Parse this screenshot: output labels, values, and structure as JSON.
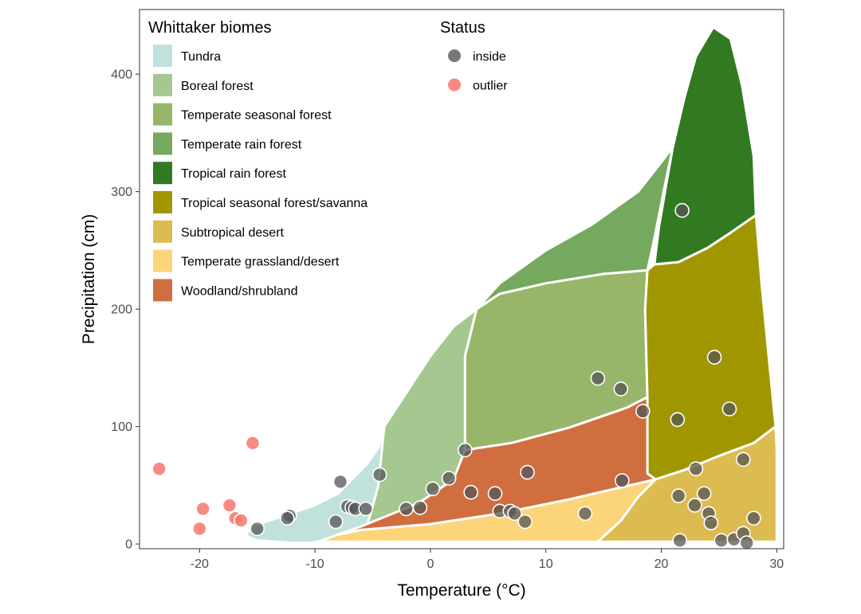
{
  "chart_data": {
    "type": "scatter",
    "xlabel": "Temperature (°C)",
    "ylabel": "Precipitation (cm)",
    "xlim": [
      -25.2,
      30.6
    ],
    "ylim": [
      -4,
      455
    ],
    "x_ticks": [
      -20,
      -10,
      0,
      10,
      20,
      30
    ],
    "x_tick_labels": [
      "-20",
      "-10",
      "0",
      "10",
      "20",
      "30"
    ],
    "y_ticks": [
      0,
      100,
      200,
      300,
      400
    ],
    "y_tick_labels": [
      "0",
      "100",
      "200",
      "300",
      "400"
    ],
    "grid": false,
    "legend_position": "top-left inside",
    "biome_legend": {
      "title": "Whittaker biomes",
      "items": [
        {
          "label": "Tundra",
          "color": "#C1E1DD"
        },
        {
          "label": "Boreal forest",
          "color": "#A5C790"
        },
        {
          "label": "Temperate seasonal forest",
          "color": "#97B669"
        },
        {
          "label": "Temperate rain forest",
          "color": "#75A95E"
        },
        {
          "label": "Tropical rain forest",
          "color": "#317A22"
        },
        {
          "label": "Tropical seasonal forest/savanna",
          "color": "#A09700"
        },
        {
          "label": "Subtropical desert",
          "color": "#DCBB50"
        },
        {
          "label": "Temperate grassland/desert",
          "color": "#FCD57A"
        },
        {
          "label": "Woodland/shrubland",
          "color": "#D16E3F"
        }
      ]
    },
    "status_legend": {
      "title": "Status",
      "items": [
        {
          "label": "inside",
          "color": "#555555"
        },
        {
          "label": "outlier",
          "color": "#F8766D"
        }
      ]
    },
    "biome_regions": [
      {
        "name": "Tundra",
        "color": "#C1E1DD",
        "polygon": [
          [
            -15.5,
            15
          ],
          [
            -13,
            23
          ],
          [
            -10,
            33
          ],
          [
            -8,
            43
          ],
          [
            -6.5,
            58
          ],
          [
            -5.5,
            68
          ],
          [
            -4.5,
            82
          ],
          [
            -4,
            100
          ],
          [
            -4.5,
            50
          ],
          [
            -5.5,
            15
          ],
          [
            -8,
            8
          ],
          [
            -10,
            1
          ],
          [
            -12,
            1
          ],
          [
            -15,
            3
          ],
          [
            -16,
            7
          ]
        ]
      },
      {
        "name": "Boreal forest",
        "color": "#A5C790",
        "polygon": [
          [
            -5.5,
            15
          ],
          [
            -4.5,
            50
          ],
          [
            -4,
            100
          ],
          [
            -2,
            130
          ],
          [
            0,
            160
          ],
          [
            2,
            185
          ],
          [
            4,
            200
          ],
          [
            3.5,
            180
          ],
          [
            3,
            160
          ],
          [
            3,
            120
          ],
          [
            3,
            80
          ],
          [
            2,
            55
          ],
          [
            -1,
            35
          ],
          [
            -5.5,
            15
          ]
        ]
      },
      {
        "name": "Temperate seasonal forest",
        "color": "#97B669",
        "polygon": [
          [
            3,
            80
          ],
          [
            3,
            120
          ],
          [
            3,
            160
          ],
          [
            3.5,
            180
          ],
          [
            4,
            200
          ],
          [
            6,
            213
          ],
          [
            10,
            222
          ],
          [
            15,
            230
          ],
          [
            18.8,
            233
          ],
          [
            18.6,
            200
          ],
          [
            18.7,
            160
          ],
          [
            18.8,
            125
          ],
          [
            17,
            116
          ],
          [
            12,
            99
          ],
          [
            7,
            86
          ],
          [
            3,
            80
          ]
        ]
      },
      {
        "name": "Temperate rain forest",
        "color": "#75A95E",
        "polygon": [
          [
            4,
            200
          ],
          [
            6,
            222
          ],
          [
            10,
            250
          ],
          [
            14,
            272
          ],
          [
            18,
            300
          ],
          [
            20,
            325
          ],
          [
            21,
            338
          ],
          [
            20.2,
            300
          ],
          [
            19.4,
            260
          ],
          [
            18.8,
            233
          ],
          [
            15,
            230
          ],
          [
            10,
            222
          ],
          [
            6,
            213
          ]
        ]
      },
      {
        "name": "Tropical rain forest",
        "color": "#317A22",
        "polygon": [
          [
            21,
            338
          ],
          [
            22,
            380
          ],
          [
            23,
            415
          ],
          [
            24.5,
            440
          ],
          [
            26,
            430
          ],
          [
            27,
            390
          ],
          [
            28,
            330
          ],
          [
            28.2,
            280
          ],
          [
            26,
            265
          ],
          [
            24,
            252
          ],
          [
            21.5,
            240
          ],
          [
            19.4,
            238
          ],
          [
            19.8,
            270
          ],
          [
            20.5,
            310
          ]
        ]
      },
      {
        "name": "Tropical seasonal forest/savanna",
        "color": "#A09700",
        "polygon": [
          [
            19.4,
            238
          ],
          [
            21.5,
            240
          ],
          [
            24,
            252
          ],
          [
            26,
            265
          ],
          [
            28.2,
            280
          ],
          [
            28.7,
            220
          ],
          [
            29.4,
            150
          ],
          [
            29.8,
            110
          ],
          [
            29.9,
            100
          ],
          [
            28,
            86
          ],
          [
            25,
            75
          ],
          [
            22,
            63
          ],
          [
            19.5,
            55
          ],
          [
            18.8,
            60
          ],
          [
            18.7,
            100
          ],
          [
            18.8,
            125
          ],
          [
            18.7,
            160
          ],
          [
            18.6,
            200
          ],
          [
            18.8,
            233
          ]
        ]
      },
      {
        "name": "Subtropical desert",
        "color": "#DCBB50",
        "polygon": [
          [
            19.5,
            55
          ],
          [
            22,
            63
          ],
          [
            25,
            75
          ],
          [
            28,
            86
          ],
          [
            29.9,
            100
          ],
          [
            30,
            80
          ],
          [
            30,
            40
          ],
          [
            30,
            2
          ],
          [
            14.5,
            2
          ],
          [
            16.5,
            20
          ],
          [
            18,
            40
          ]
        ]
      },
      {
        "name": "Temperate grassland/desert",
        "color": "#FCD57A",
        "polygon": [
          [
            -10,
            1
          ],
          [
            -8,
            8
          ],
          [
            -6,
            12
          ],
          [
            0,
            17
          ],
          [
            6,
            26
          ],
          [
            12,
            38
          ],
          [
            19.5,
            55
          ],
          [
            18,
            40
          ],
          [
            16.5,
            20
          ],
          [
            14.5,
            2
          ],
          [
            -10,
            2
          ]
        ]
      },
      {
        "name": "Woodland/shrubland",
        "color": "#D16E3F",
        "polygon": [
          [
            -8,
            8
          ],
          [
            -6,
            15
          ],
          [
            -1,
            35
          ],
          [
            2,
            55
          ],
          [
            3,
            80
          ],
          [
            7,
            86
          ],
          [
            12,
            99
          ],
          [
            17,
            116
          ],
          [
            18.8,
            125
          ],
          [
            18.8,
            60
          ],
          [
            19.5,
            55
          ],
          [
            12,
            38
          ],
          [
            6,
            26
          ],
          [
            0,
            17
          ],
          [
            -6,
            12
          ]
        ]
      }
    ],
    "series": [
      {
        "name": "inside",
        "color": "#555555",
        "points": [
          [
            -15,
            13
          ],
          [
            -12.2,
            24
          ],
          [
            -12.4,
            22
          ],
          [
            -8.2,
            19
          ],
          [
            -7.8,
            53
          ],
          [
            -7.2,
            32
          ],
          [
            -6.8,
            31
          ],
          [
            -6.5,
            30
          ],
          [
            -5.6,
            30
          ],
          [
            -4.4,
            59
          ],
          [
            -2.1,
            30
          ],
          [
            -0.9,
            31
          ],
          [
            0.2,
            47
          ],
          [
            1.6,
            56
          ],
          [
            3,
            80
          ],
          [
            3.5,
            44
          ],
          [
            5.6,
            43
          ],
          [
            6,
            28
          ],
          [
            6.9,
            28
          ],
          [
            7.3,
            26
          ],
          [
            8.2,
            19
          ],
          [
            8.4,
            61
          ],
          [
            13.4,
            26
          ],
          [
            14.5,
            141
          ],
          [
            16.5,
            132
          ],
          [
            16.6,
            54
          ],
          [
            18.4,
            113
          ],
          [
            21.4,
            106
          ],
          [
            21.5,
            41
          ],
          [
            21.6,
            3
          ],
          [
            21.8,
            284
          ],
          [
            22.9,
            33
          ],
          [
            23,
            64
          ],
          [
            23.7,
            43
          ],
          [
            24.1,
            26
          ],
          [
            24.3,
            18
          ],
          [
            24.6,
            159
          ],
          [
            25.2,
            3
          ],
          [
            25.9,
            115
          ],
          [
            26.3,
            4
          ],
          [
            27.1,
            9
          ],
          [
            27.1,
            72
          ],
          [
            27.4,
            1
          ],
          [
            28,
            22
          ]
        ]
      },
      {
        "name": "outlier",
        "color": "#F8766D",
        "points": [
          [
            -23.5,
            64
          ],
          [
            -20,
            13
          ],
          [
            -19.7,
            30
          ],
          [
            -17.4,
            33
          ],
          [
            -16.9,
            22
          ],
          [
            -16.4,
            20
          ],
          [
            -15.4,
            86
          ]
        ]
      }
    ]
  }
}
